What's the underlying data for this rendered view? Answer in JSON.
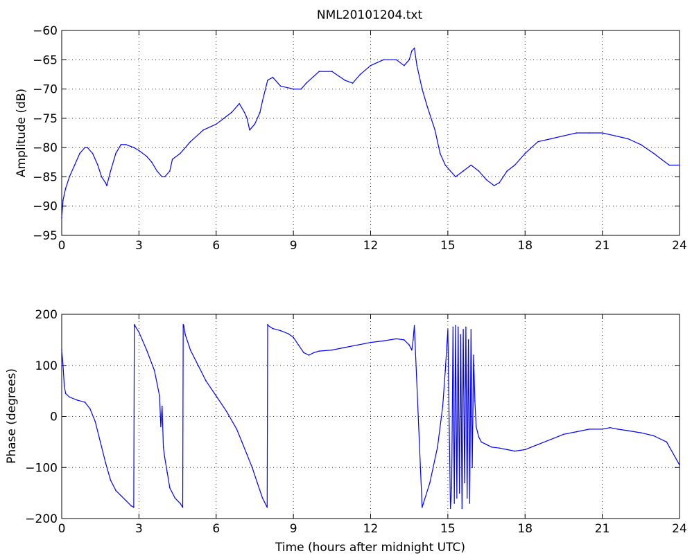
{
  "figure_title": "NML20101204.txt",
  "colors": {
    "trace": "#0000ff",
    "axes": "#000000",
    "background": "#ffffff"
  },
  "chart_data": [
    {
      "type": "line",
      "title": "NML20101204.txt",
      "xlabel": "",
      "ylabel": "Amplitude (dB)",
      "xlim": [
        0,
        24
      ],
      "ylim": [
        -95,
        -60
      ],
      "xticks": [
        0,
        3,
        6,
        9,
        12,
        15,
        18,
        21,
        24
      ],
      "yticks": [
        -95,
        -90,
        -85,
        -80,
        -75,
        -70,
        -65,
        -60
      ],
      "xtick_labels": [
        "0",
        "3",
        "6",
        "9",
        "12",
        "15",
        "18",
        "21",
        "24"
      ],
      "ytick_labels": [
        "−95",
        "−90",
        "−85",
        "−80",
        "−75",
        "−70",
        "−65",
        "−60"
      ],
      "grid": true,
      "series": [
        {
          "x": [
            0,
            0.05,
            0.15,
            0.3,
            0.5,
            0.7,
            0.9,
            1.0,
            1.2,
            1.4,
            1.55,
            1.7,
            1.75,
            1.9,
            2.1,
            2.3,
            2.5,
            2.8,
            3.0,
            3.3,
            3.5,
            3.7,
            3.9,
            4.0,
            4.2,
            4.3,
            4.6,
            5.0,
            5.5,
            6.0,
            6.3,
            6.6,
            6.9,
            7.1,
            7.2,
            7.3,
            7.5,
            7.7,
            7.8,
            8.0,
            8.2,
            8.5,
            9.0,
            9.3,
            9.5,
            10.0,
            10.5,
            11.0,
            11.3,
            11.6,
            12.0,
            12.5,
            13.0,
            13.3,
            13.5,
            13.6,
            13.7,
            13.8,
            14.0,
            14.2,
            14.5,
            14.7,
            14.9,
            15.1,
            15.3,
            15.6,
            15.9,
            16.2,
            16.5,
            16.8,
            17.0,
            17.3,
            17.6,
            18.0,
            18.5,
            19.0,
            19.5,
            20.0,
            20.5,
            21.0,
            21.5,
            22.0,
            22.5,
            23.0,
            23.3,
            23.6,
            24.0
          ],
          "y": [
            -92,
            -89,
            -87,
            -85,
            -83,
            -81,
            -80,
            -80,
            -81,
            -83,
            -85,
            -86,
            -86.5,
            -84,
            -81,
            -79.5,
            -79.5,
            -80,
            -80.5,
            -81.5,
            -82.5,
            -84,
            -85,
            -85,
            -84,
            -82,
            -81,
            -79,
            -77,
            -76,
            -75,
            -74,
            -72.5,
            -74,
            -75,
            -77,
            -76,
            -74,
            -72,
            -68.5,
            -68,
            -69.5,
            -70,
            -70,
            -69,
            -67,
            -67,
            -68.5,
            -69,
            -67.5,
            -66,
            -65,
            -65,
            -66,
            -65,
            -63.5,
            -63,
            -66,
            -70,
            -73,
            -77,
            -81,
            -83,
            -84,
            -85,
            -84,
            -83,
            -84,
            -85.5,
            -86.5,
            -86,
            -84,
            -83,
            -81,
            -79,
            -78.5,
            -78,
            -77.5,
            -77.5,
            -77.5,
            -78,
            -78.5,
            -79.5,
            -81,
            -82,
            -83,
            -83
          ]
        }
      ]
    },
    {
      "type": "line",
      "title": "",
      "xlabel": "Time (hours after midnight UTC)",
      "ylabel": "Phase (degrees)",
      "xlim": [
        0,
        24
      ],
      "ylim": [
        -200,
        200
      ],
      "xticks": [
        0,
        3,
        6,
        9,
        12,
        15,
        18,
        21,
        24
      ],
      "yticks": [
        -200,
        -100,
        0,
        100,
        200
      ],
      "xtick_labels": [
        "0",
        "3",
        "6",
        "9",
        "12",
        "15",
        "18",
        "21",
        "24"
      ],
      "ytick_labels": [
        "−200",
        "−100",
        "0",
        "100",
        "200"
      ],
      "grid": true,
      "series": [
        {
          "x": [
            0,
            0.05,
            0.1,
            0.15,
            0.3,
            0.6,
            0.9,
            1.1,
            1.3,
            1.5,
            1.7,
            1.9,
            2.1,
            2.3,
            2.5,
            2.7,
            2.8,
            2.82,
            2.84,
            3.0,
            3.3,
            3.6,
            3.8,
            3.85,
            3.9,
            3.95,
            4.0,
            4.1,
            4.2,
            4.4,
            4.6,
            4.7,
            4.72,
            4.74,
            4.8,
            5.0,
            5.3,
            5.6,
            6.0,
            6.4,
            6.8,
            7.0,
            7.2,
            7.4,
            7.6,
            7.8,
            7.98,
            8.0,
            8.02,
            8.2,
            8.5,
            8.8,
            9.0,
            9.2,
            9.4,
            9.6,
            9.8,
            10.0,
            10.5,
            11.0,
            11.5,
            12.0,
            12.5,
            13.0,
            13.3,
            13.5,
            13.6,
            13.65,
            13.7,
            14.0,
            14.3,
            14.6,
            14.8,
            14.9,
            15.0,
            15.1,
            15.15,
            15.2,
            15.25,
            15.3,
            15.35,
            15.4,
            15.45,
            15.5,
            15.55,
            15.6,
            15.65,
            15.7,
            15.75,
            15.8,
            15.85,
            15.9,
            15.95,
            16.0,
            16.05,
            16.1,
            16.2,
            16.3,
            16.5,
            16.7,
            17.0,
            17.3,
            17.6,
            18.0,
            18.5,
            19.0,
            19.5,
            20.0,
            20.5,
            21.0,
            21.3,
            21.6,
            22.0,
            22.5,
            23.0,
            23.5,
            24.0
          ],
          "y": [
            130,
            100,
            60,
            45,
            38,
            32,
            28,
            15,
            -10,
            -50,
            -90,
            -125,
            -145,
            -155,
            -165,
            -175,
            -178,
            180,
            178,
            165,
            130,
            90,
            40,
            -20,
            20,
            -60,
            -80,
            -110,
            -140,
            -160,
            -170,
            -178,
            180,
            178,
            160,
            130,
            100,
            70,
            40,
            10,
            -25,
            -50,
            -75,
            -100,
            -130,
            -160,
            -178,
            180,
            178,
            172,
            168,
            162,
            155,
            140,
            125,
            120,
            125,
            128,
            130,
            135,
            140,
            145,
            148,
            152,
            150,
            140,
            130,
            150,
            178,
            -178,
            -130,
            -60,
            20,
            90,
            170,
            -180,
            -140,
            175,
            -170,
            178,
            -160,
            175,
            -150,
            160,
            -180,
            170,
            -130,
            175,
            -160,
            150,
            -170,
            170,
            -100,
            120,
            30,
            -20,
            -40,
            -50,
            -55,
            -60,
            -62,
            -65,
            -68,
            -65,
            -55,
            -45,
            -35,
            -30,
            -25,
            -25,
            -22,
            -25,
            -28,
            -32,
            -38,
            -50,
            -95
          ]
        }
      ]
    }
  ]
}
